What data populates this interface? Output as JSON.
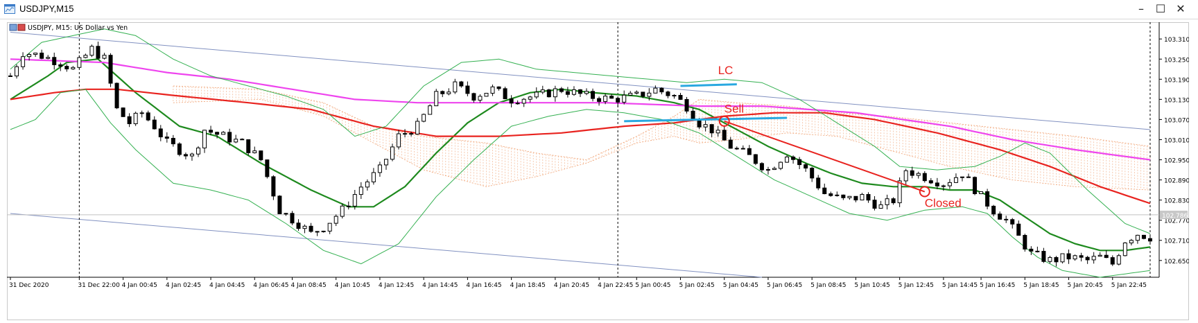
{
  "window": {
    "title": "USDJPY,M15",
    "minimize_label": "–",
    "maximize_label": "☐",
    "close_label": "✕"
  },
  "chart_data": {
    "type": "candlestick",
    "title": "USDJPY, M15:  US Dollar vs Yen",
    "symbol": "USDJPY",
    "timeframe": "M15",
    "description": "US Dollar vs Yen",
    "ylim": [
      102.6,
      103.36
    ],
    "y_ticks": [
      "103.310",
      "103.250",
      "103.190",
      "103.130",
      "103.070",
      "103.010",
      "102.950",
      "102.890",
      "102.830",
      "102.770",
      "102.710",
      "102.650"
    ],
    "x_ticks": [
      "31 Dec 2020",
      "31 Dec 22:00",
      "4 Jan 00:45",
      "4 Jan 02:45",
      "4 Jan 04:45",
      "4 Jan 06:45",
      "4 Jan 08:45",
      "4 Jan 10:45",
      "4 Jan 12:45",
      "4 Jan 14:45",
      "4 Jan 16:45",
      "4 Jan 18:45",
      "4 Jan 20:45",
      "4 Jan 22:45",
      "5 Jan 00:45",
      "5 Jan 02:45",
      "5 Jan 04:45",
      "5 Jan 06:45",
      "5 Jan 08:45",
      "5 Jan 10:45",
      "5 Jan 12:45",
      "5 Jan 14:45",
      "5 Jan 16:45",
      "5 Jan 18:45",
      "5 Jan 20:45",
      "5 Jan 22:45"
    ],
    "current_price": "102.786",
    "close_anchors": [
      [
        0,
        103.2
      ],
      [
        2,
        103.27
      ],
      [
        5,
        103.26
      ],
      [
        8,
        103.24
      ],
      [
        10,
        103.22
      ],
      [
        13,
        103.28
      ],
      [
        15,
        103.25
      ],
      [
        17,
        103.1
      ],
      [
        19,
        103.06
      ],
      [
        21,
        103.09
      ],
      [
        23,
        103.05
      ],
      [
        25,
        103.0
      ],
      [
        27,
        102.98
      ],
      [
        29,
        102.96
      ],
      [
        31,
        103.04
      ],
      [
        34,
        103.02
      ],
      [
        37,
        103.0
      ],
      [
        40,
        102.95
      ],
      [
        43,
        102.8
      ],
      [
        46,
        102.76
      ],
      [
        48,
        102.73
      ],
      [
        50,
        102.75
      ],
      [
        53,
        102.8
      ],
      [
        56,
        102.87
      ],
      [
        59,
        102.92
      ],
      [
        62,
        103.02
      ],
      [
        65,
        103.05
      ],
      [
        68,
        103.14
      ],
      [
        71,
        103.17
      ],
      [
        74,
        103.14
      ],
      [
        77,
        103.16
      ],
      [
        80,
        103.13
      ],
      [
        84,
        103.14
      ],
      [
        88,
        103.16
      ],
      [
        92,
        103.14
      ],
      [
        96,
        103.13
      ],
      [
        100,
        103.14
      ],
      [
        103,
        103.16
      ],
      [
        106,
        103.14
      ],
      [
        108,
        103.11
      ],
      [
        110,
        103.06
      ],
      [
        112,
        103.04
      ],
      [
        115,
        102.99
      ],
      [
        118,
        102.96
      ],
      [
        121,
        102.92
      ],
      [
        124,
        102.97
      ],
      [
        127,
        102.92
      ],
      [
        130,
        102.85
      ],
      [
        133,
        102.83
      ],
      [
        136,
        102.84
      ],
      [
        139,
        102.81
      ],
      [
        141,
        102.83
      ],
      [
        143,
        102.92
      ],
      [
        146,
        102.9
      ],
      [
        149,
        102.88
      ],
      [
        152,
        102.91
      ],
      [
        155,
        102.84
      ],
      [
        157,
        102.8
      ],
      [
        159,
        102.77
      ],
      [
        161,
        102.72
      ],
      [
        163,
        102.67
      ],
      [
        166,
        102.65
      ],
      [
        169,
        102.66
      ],
      [
        172,
        102.65
      ],
      [
        174,
        102.66
      ],
      [
        176,
        102.64
      ],
      [
        178,
        102.71
      ],
      [
        180,
        102.73
      ],
      [
        182,
        102.72
      ]
    ],
    "series": [
      {
        "name": "Moving Average (green)",
        "color": "#1e8a1e",
        "points": [
          [
            0,
            103.13
          ],
          [
            6,
            103.2
          ],
          [
            9,
            103.24
          ],
          [
            14,
            103.25
          ],
          [
            20,
            103.15
          ],
          [
            27,
            103.05
          ],
          [
            33,
            103.02
          ],
          [
            40,
            102.94
          ],
          [
            48,
            102.86
          ],
          [
            54,
            102.81
          ],
          [
            58,
            102.81
          ],
          [
            63,
            102.87
          ],
          [
            68,
            102.97
          ],
          [
            73,
            103.06
          ],
          [
            78,
            103.12
          ],
          [
            83,
            103.15
          ],
          [
            88,
            103.16
          ],
          [
            93,
            103.15
          ],
          [
            100,
            103.14
          ],
          [
            106,
            103.12
          ],
          [
            110,
            103.1
          ],
          [
            116,
            103.04
          ],
          [
            121,
            102.99
          ],
          [
            127,
            102.94
          ],
          [
            131,
            102.91
          ],
          [
            136,
            102.88
          ],
          [
            141,
            102.87
          ],
          [
            146,
            102.87
          ],
          [
            150,
            102.86
          ],
          [
            154,
            102.86
          ],
          [
            158,
            102.83
          ],
          [
            162,
            102.78
          ],
          [
            166,
            102.73
          ],
          [
            170,
            102.7
          ],
          [
            174,
            102.68
          ],
          [
            178,
            102.68
          ],
          [
            182,
            102.69
          ]
        ]
      },
      {
        "name": "Moving Average (red)",
        "color": "#e8231f",
        "points": [
          [
            0,
            103.13
          ],
          [
            7,
            103.15
          ],
          [
            12,
            103.16
          ],
          [
            17,
            103.16
          ],
          [
            27,
            103.14
          ],
          [
            38,
            103.12
          ],
          [
            48,
            103.1
          ],
          [
            58,
            103.05
          ],
          [
            68,
            103.02
          ],
          [
            78,
            103.02
          ],
          [
            88,
            103.03
          ],
          [
            98,
            103.05
          ],
          [
            106,
            103.06
          ],
          [
            114,
            103.08
          ],
          [
            122,
            103.09
          ],
          [
            130,
            103.09
          ],
          [
            138,
            103.07
          ],
          [
            148,
            103.03
          ],
          [
            158,
            102.98
          ],
          [
            166,
            102.93
          ],
          [
            174,
            102.87
          ],
          [
            182,
            102.82
          ]
        ]
      },
      {
        "name": "Moving Average (magenta)",
        "color": "#ee44ee",
        "points": [
          [
            0,
            103.25
          ],
          [
            15,
            103.24
          ],
          [
            25,
            103.21
          ],
          [
            35,
            103.19
          ],
          [
            45,
            103.16
          ],
          [
            55,
            103.13
          ],
          [
            65,
            103.12
          ],
          [
            80,
            103.12
          ],
          [
            95,
            103.12
          ],
          [
            110,
            103.11
          ],
          [
            120,
            103.11
          ],
          [
            135,
            103.09
          ],
          [
            150,
            103.05
          ],
          [
            160,
            103.01
          ],
          [
            170,
            102.98
          ],
          [
            182,
            102.95
          ]
        ]
      },
      {
        "name": "Bollinger upper",
        "color": "#33b050",
        "points": [
          [
            0,
            103.22
          ],
          [
            5,
            103.3
          ],
          [
            10,
            103.32
          ],
          [
            15,
            103.34
          ],
          [
            20,
            103.32
          ],
          [
            26,
            103.25
          ],
          [
            32,
            103.2
          ],
          [
            38,
            103.17
          ],
          [
            44,
            103.14
          ],
          [
            50,
            103.1
          ],
          [
            55,
            103.02
          ],
          [
            60,
            103.05
          ],
          [
            66,
            103.17
          ],
          [
            72,
            103.24
          ],
          [
            78,
            103.25
          ],
          [
            84,
            103.22
          ],
          [
            90,
            103.21
          ],
          [
            96,
            103.2
          ],
          [
            102,
            103.19
          ],
          [
            108,
            103.18
          ],
          [
            114,
            103.19
          ],
          [
            120,
            103.18
          ],
          [
            126,
            103.13
          ],
          [
            132,
            103.06
          ],
          [
            138,
            102.99
          ],
          [
            142,
            102.93
          ],
          [
            148,
            102.92
          ],
          [
            154,
            102.93
          ],
          [
            158,
            102.96
          ],
          [
            162,
            103.0
          ],
          [
            166,
            102.97
          ],
          [
            172,
            102.86
          ],
          [
            178,
            102.76
          ],
          [
            182,
            102.73
          ]
        ]
      },
      {
        "name": "Bollinger lower",
        "color": "#33b050",
        "points": [
          [
            0,
            103.04
          ],
          [
            4,
            103.07
          ],
          [
            8,
            103.15
          ],
          [
            12,
            103.16
          ],
          [
            16,
            103.06
          ],
          [
            20,
            102.98
          ],
          [
            26,
            102.88
          ],
          [
            32,
            102.86
          ],
          [
            38,
            102.83
          ],
          [
            44,
            102.76
          ],
          [
            50,
            102.68
          ],
          [
            56,
            102.64
          ],
          [
            62,
            102.7
          ],
          [
            68,
            102.84
          ],
          [
            74,
            102.95
          ],
          [
            80,
            103.05
          ],
          [
            86,
            103.08
          ],
          [
            92,
            103.1
          ],
          [
            98,
            103.09
          ],
          [
            104,
            103.07
          ],
          [
            110,
            103.03
          ],
          [
            116,
            102.96
          ],
          [
            122,
            102.89
          ],
          [
            128,
            102.84
          ],
          [
            134,
            102.79
          ],
          [
            140,
            102.77
          ],
          [
            146,
            102.8
          ],
          [
            152,
            102.81
          ],
          [
            156,
            102.79
          ],
          [
            160,
            102.72
          ],
          [
            164,
            102.66
          ],
          [
            168,
            102.62
          ],
          [
            174,
            102.6
          ],
          [
            182,
            102.62
          ]
        ]
      }
    ],
    "regression_channel": {
      "color": "#8090c0",
      "upper": [
        [
          0,
          103.33
        ],
        [
          182,
          103.04
        ]
      ],
      "lower": [
        [
          0,
          102.79
        ],
        [
          120,
          102.6
        ]
      ]
    },
    "cloud_band": {
      "color": "#f0a070",
      "top": [
        [
          26,
          103.17
        ],
        [
          40,
          103.16
        ],
        [
          50,
          103.12
        ],
        [
          58,
          103.05
        ],
        [
          66,
          103.02
        ],
        [
          76,
          103.0
        ],
        [
          84,
          102.97
        ],
        [
          92,
          102.95
        ],
        [
          100,
          103.02
        ],
        [
          106,
          103.08
        ],
        [
          110,
          103.13
        ],
        [
          116,
          103.12
        ],
        [
          124,
          103.11
        ],
        [
          132,
          103.09
        ],
        [
          140,
          103.08
        ],
        [
          150,
          103.06
        ],
        [
          160,
          103.04
        ],
        [
          170,
          103.02
        ],
        [
          182,
          102.99
        ]
      ],
      "bottom": [
        [
          26,
          103.12
        ],
        [
          40,
          103.13
        ],
        [
          50,
          103.08
        ],
        [
          58,
          103.0
        ],
        [
          66,
          102.92
        ],
        [
          76,
          102.87
        ],
        [
          84,
          102.9
        ],
        [
          92,
          102.94
        ],
        [
          100,
          103.0
        ],
        [
          106,
          103.02
        ],
        [
          110,
          103.0
        ],
        [
          116,
          103.01
        ],
        [
          124,
          103.03
        ],
        [
          132,
          103.02
        ],
        [
          140,
          102.98
        ],
        [
          150,
          102.93
        ],
        [
          160,
          102.89
        ],
        [
          170,
          102.87
        ],
        [
          182,
          102.86
        ]
      ]
    },
    "annotations": [
      {
        "text": "LC",
        "color": "#e8231f",
        "bar": 113,
        "price": 103.205
      },
      {
        "text": "Sell",
        "color": "#e8231f",
        "bar": 114,
        "price": 103.09
      },
      {
        "text": "Closed",
        "color": "#e8231f",
        "bar": 146,
        "price": 102.81
      }
    ],
    "lines": [
      {
        "name": "lc-line",
        "color": "#29a8e0",
        "from": [
          107,
          103.17
        ],
        "to": [
          116,
          103.175
        ]
      },
      {
        "name": "entry-line",
        "color": "#29a8e0",
        "from": [
          98,
          103.065
        ],
        "to": [
          124,
          103.075
        ]
      },
      {
        "name": "trade-line",
        "color": "#e8231f",
        "from": [
          114,
          103.065
        ],
        "to": [
          146,
          102.855
        ]
      }
    ],
    "trade_markers": [
      {
        "name": "sell-marker",
        "bar": 114,
        "price": 103.065
      },
      {
        "name": "close-marker",
        "bar": 146,
        "price": 102.855
      }
    ],
    "session_separators_bars": [
      11,
      97
    ],
    "last_bar_marker": 182
  }
}
